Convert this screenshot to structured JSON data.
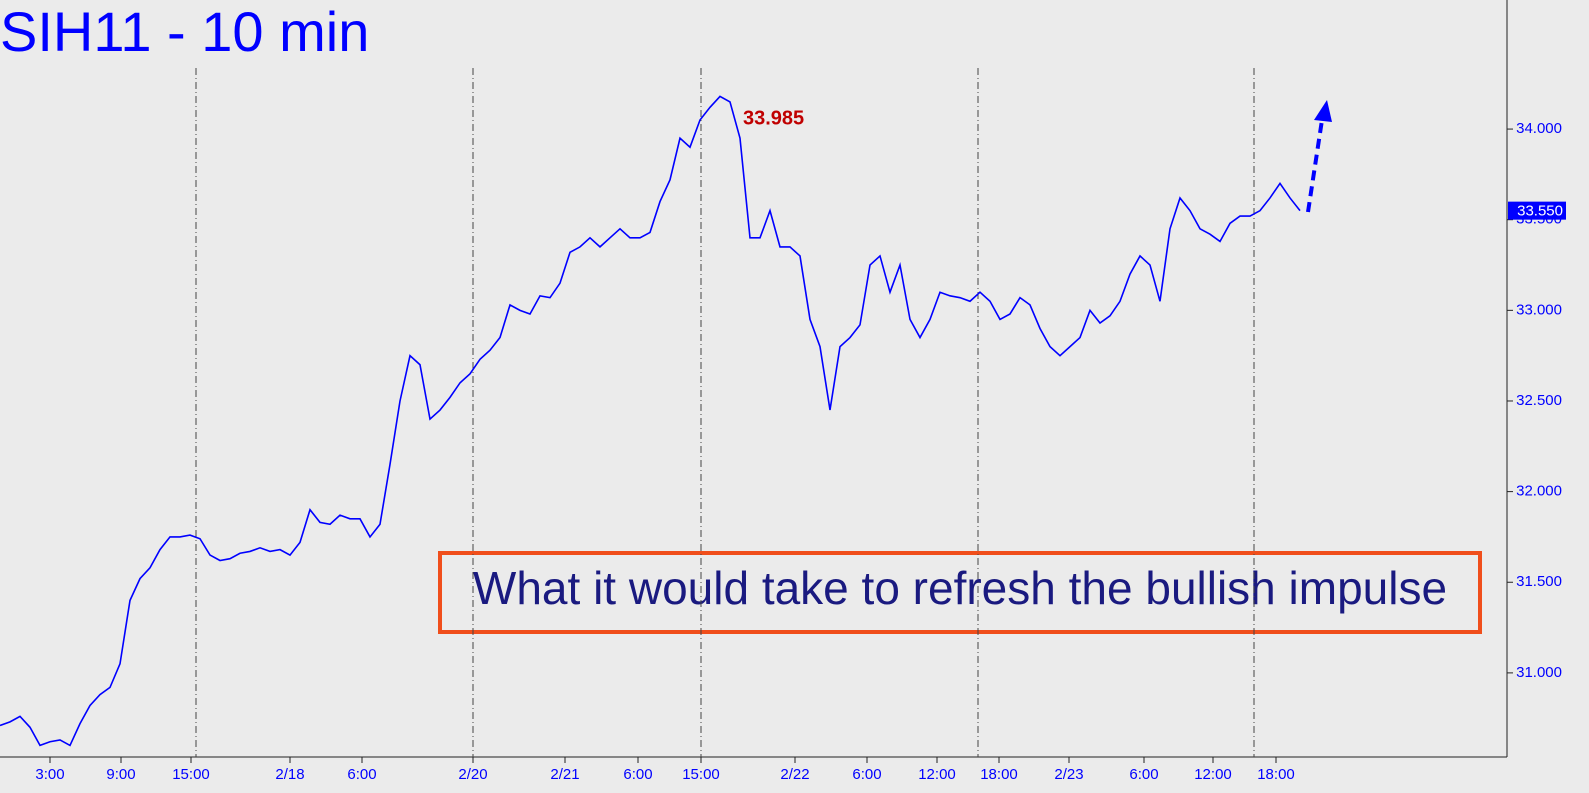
{
  "chart_data": {
    "type": "line",
    "title": "SIH11 - 10 min",
    "annotation": "33.985",
    "note_box": "What it would take to refresh the bullish impulse",
    "last_price": {
      "value": 33.55,
      "label": "33.550"
    },
    "color": "#0000ff",
    "values": [
      30.71,
      30.73,
      30.76,
      30.7,
      30.6,
      30.62,
      30.63,
      30.6,
      30.72,
      30.82,
      30.88,
      30.92,
      31.05,
      31.4,
      31.52,
      31.58,
      31.68,
      31.75,
      31.75,
      31.76,
      31.74,
      31.65,
      31.62,
      31.63,
      31.66,
      31.67,
      31.69,
      31.67,
      31.68,
      31.65,
      31.72,
      31.9,
      31.83,
      31.82,
      31.87,
      31.85,
      31.85,
      31.75,
      31.82,
      32.15,
      32.5,
      32.75,
      32.7,
      32.4,
      32.45,
      32.52,
      32.6,
      32.65,
      32.73,
      32.78,
      32.85,
      33.03,
      33.0,
      32.98,
      33.08,
      33.07,
      33.15,
      33.32,
      33.35,
      33.4,
      33.35,
      33.4,
      33.45,
      33.4,
      33.4,
      33.43,
      33.6,
      33.72,
      33.95,
      33.9,
      34.05,
      34.12,
      34.18,
      34.15,
      33.95,
      33.4,
      33.4,
      33.55,
      33.35,
      33.35,
      33.3,
      32.95,
      32.8,
      32.45,
      32.8,
      32.85,
      32.92,
      33.25,
      33.3,
      33.1,
      33.25,
      32.95,
      32.85,
      32.95,
      33.1,
      33.08,
      33.07,
      33.05,
      33.1,
      33.05,
      32.95,
      32.98,
      33.07,
      33.03,
      32.9,
      32.8,
      32.75,
      32.8,
      32.85,
      33.0,
      32.93,
      32.97,
      33.05,
      33.2,
      33.3,
      33.25,
      33.05,
      33.45,
      33.62,
      33.55,
      33.45,
      33.42,
      33.38,
      33.48,
      33.52,
      33.52,
      33.55,
      33.62,
      33.7,
      33.62,
      33.55
    ],
    "xlim": [
      0,
      150.7
    ],
    "xticks": [
      {
        "value": 5,
        "label": "3:00"
      },
      {
        "value": 12.1,
        "label": "9:00"
      },
      {
        "value": 19.1,
        "label": "15:00"
      },
      {
        "value": 29,
        "label": "2/18"
      },
      {
        "value": 36.2,
        "label": "6:00"
      },
      {
        "value": 47.3,
        "label": "2/20"
      },
      {
        "value": 56.5,
        "label": "2/21"
      },
      {
        "value": 63.8,
        "label": "6:00"
      },
      {
        "value": 70.1,
        "label": "15:00"
      },
      {
        "value": 79.5,
        "label": "2/22"
      },
      {
        "value": 86.7,
        "label": "6:00"
      },
      {
        "value": 93.7,
        "label": "12:00"
      },
      {
        "value": 99.9,
        "label": "18:00"
      },
      {
        "value": 106.9,
        "label": "2/23"
      },
      {
        "value": 114.4,
        "label": "6:00"
      },
      {
        "value": 121.3,
        "label": "12:00"
      },
      {
        "value": 127.6,
        "label": "18:00"
      }
    ],
    "day_lines": [
      19.6,
      47.3,
      70.1,
      97.8,
      125.4
    ],
    "ylim": [
      30.536,
      34.712
    ],
    "yticks": [
      {
        "value": 31,
        "label": "31.000"
      },
      {
        "value": 31.5,
        "label": "31.500"
      },
      {
        "value": 32,
        "label": "32.000"
      },
      {
        "value": 32.5,
        "label": "32.500"
      },
      {
        "value": 33,
        "label": "33.000"
      },
      {
        "value": 33.5,
        "label": "33.500"
      },
      {
        "value": 34,
        "label": "34.000"
      }
    ]
  }
}
